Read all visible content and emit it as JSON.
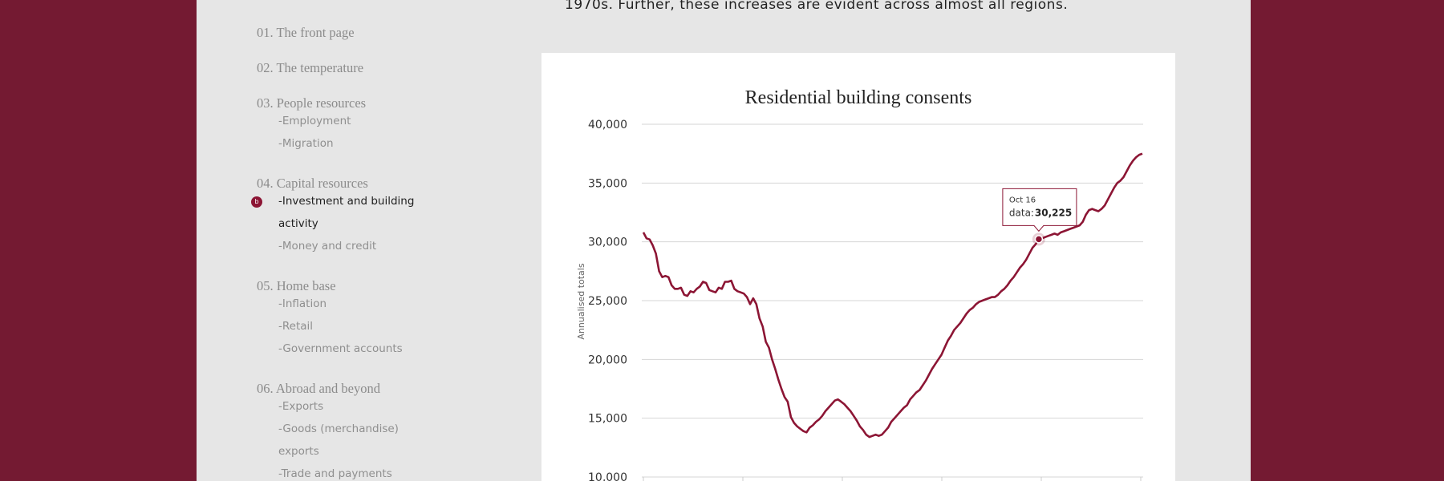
{
  "intro_text": "1970s. Further, these increases are evident across almost all regions.",
  "toc": {
    "sections": [
      {
        "label": "01. The front page",
        "items": []
      },
      {
        "label": "02. The temperature",
        "items": []
      },
      {
        "label": "03. People resources",
        "items": [
          "-Employment",
          "-Migration"
        ]
      },
      {
        "label": "04. Capital resources",
        "items": [
          "-Investment and building",
          "activity",
          "-Money and credit"
        ]
      },
      {
        "label": "05. Home base",
        "items": [
          "-Inflation",
          "-Retail",
          "-Government accounts"
        ]
      },
      {
        "label": "06. Abroad and beyond",
        "items": [
          "-Exports",
          "-Goods (merchandise)",
          "exports",
          "-Trade and payments"
        ]
      }
    ],
    "active_marker": "b"
  },
  "colors": {
    "brand": "#741a32",
    "line": "#8c1534"
  },
  "chart_data": {
    "type": "line",
    "title": "Residential building consents",
    "ylabel": "Annualised totals",
    "ylim": [
      10000,
      40000
    ],
    "yticks": [
      "10,000",
      "15,000",
      "20,000",
      "25,000",
      "30,000",
      "35,000",
      "40,000"
    ],
    "grid": true,
    "series": [
      {
        "values": [
          30800,
          30300,
          30200,
          29700,
          29000,
          27500,
          27000,
          27100,
          27000,
          26300,
          26000,
          26000,
          26100,
          25500,
          25400,
          25800,
          25700,
          26000,
          26200,
          26600,
          26500,
          25900,
          25800,
          25700,
          26100,
          26000,
          26600,
          26600,
          26700,
          26000,
          25800,
          25700,
          25600,
          25300,
          24700,
          25200,
          24700,
          23500,
          22800,
          21500,
          21000,
          20000,
          19200,
          18300,
          17500,
          16800,
          16400,
          15100,
          14600,
          14300,
          14100,
          13900,
          13800,
          14200,
          14400,
          14700,
          14900,
          15200,
          15600,
          15900,
          16200,
          16500,
          16600,
          16400,
          16200,
          15900,
          15600,
          15200,
          14800,
          14300,
          14000,
          13600,
          13400,
          13500,
          13600,
          13500,
          13600,
          13900,
          14200,
          14700,
          15000,
          15300,
          15600,
          15900,
          16100,
          16600,
          16900,
          17200,
          17400,
          17800,
          18200,
          18700,
          19200,
          19600,
          20000,
          20400,
          21000,
          21600,
          22000,
          22500,
          22800,
          23100,
          23500,
          23900,
          24200,
          24400,
          24700,
          24900,
          25000,
          25100,
          25200,
          25300,
          25300,
          25500,
          25800,
          26000,
          26300,
          26700,
          27000,
          27400,
          27800,
          28100,
          28500,
          29000,
          29500,
          29800,
          30225,
          30300,
          30400,
          30500,
          30600,
          30700,
          30600,
          30800,
          30900,
          31000,
          31100,
          31200,
          31300,
          31400,
          31700,
          32300,
          32700,
          32800,
          32700,
          32600,
          32800,
          33100,
          33600,
          34100,
          34600,
          35000,
          35200,
          35500,
          36000,
          36500,
          36900,
          37200,
          37400,
          37500
        ]
      }
    ],
    "tooltip": {
      "label": "Oct 16",
      "series_name": "data",
      "value": "30,225",
      "value_number": 30225
    }
  }
}
